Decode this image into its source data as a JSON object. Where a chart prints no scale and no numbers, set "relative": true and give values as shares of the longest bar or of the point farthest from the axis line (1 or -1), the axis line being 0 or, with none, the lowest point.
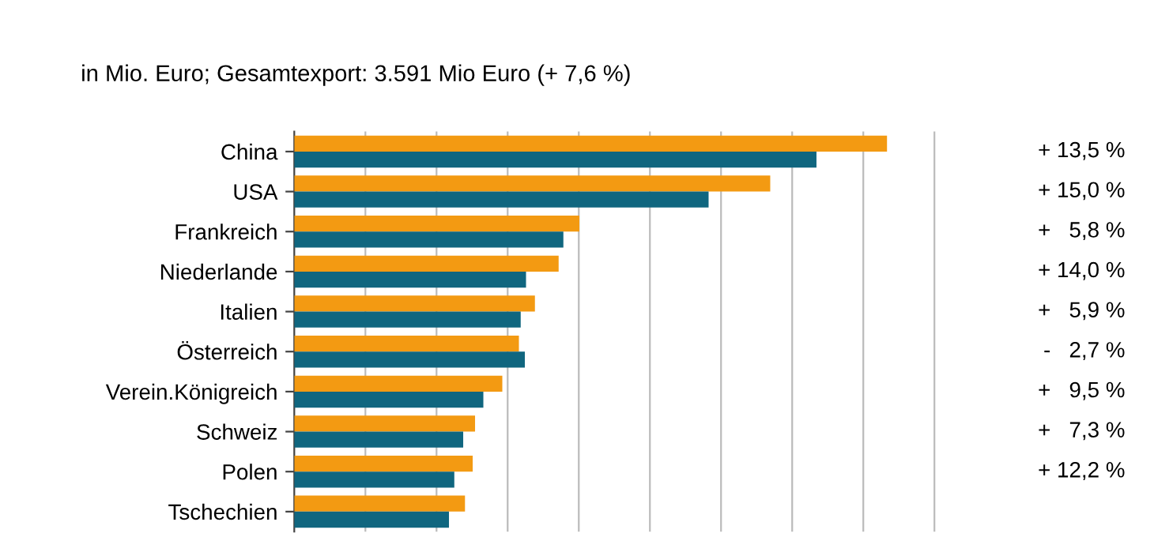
{
  "chart_data": {
    "type": "bar",
    "orientation": "horizontal",
    "relative": true,
    "subtitle": "in Mio. Euro; Gesamtexport: 3.591 Mio Euro (+ 7,6 %)",
    "categories": [
      "China",
      "USA",
      "Frankreich",
      "Niederlande",
      "Italien",
      "Österreich",
      "Verein.Königreich",
      "Schweiz",
      "Polen",
      "Tschechien"
    ],
    "series": [
      {
        "color": "#f39a12",
        "values": [
          1,
          0.803,
          0.481,
          0.446,
          0.406,
          0.379,
          0.351,
          0.305,
          0.301,
          0.288
        ]
      },
      {
        "color": "#10667f",
        "values": [
          0.881,
          0.699,
          0.454,
          0.391,
          0.382,
          0.389,
          0.319,
          0.285,
          0.27,
          0.261
        ]
      }
    ],
    "annotations": [
      "+ 13,5 %",
      "+ 15,0 %",
      "+   5,8 %",
      "+ 14,0 %",
      "+   5,9 %",
      "-   2,7 %",
      "+   9,5 %",
      "+   7,3 %",
      "+ 12,2 %"
    ],
    "grid": "x"
  }
}
